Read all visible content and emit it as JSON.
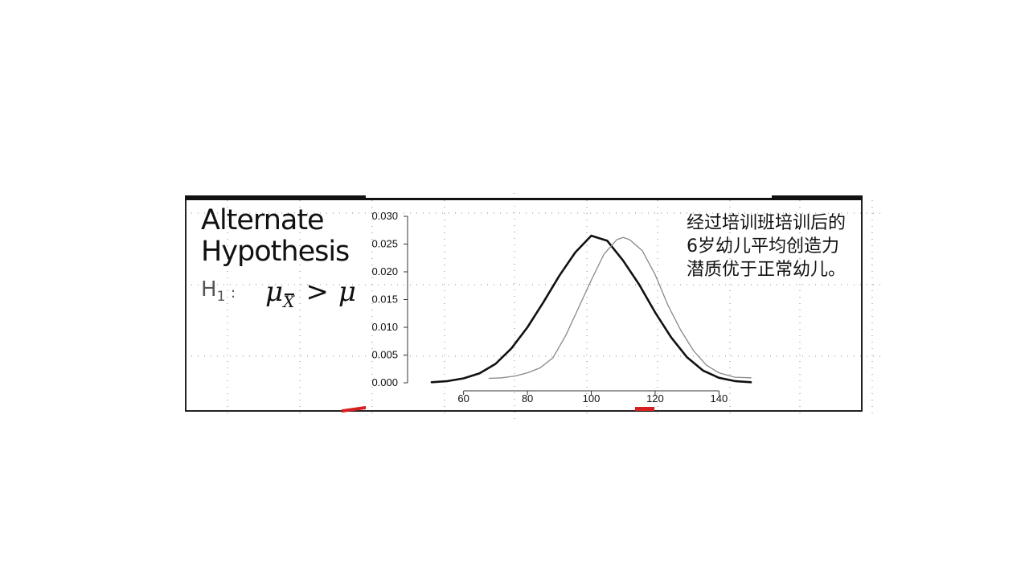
{
  "slide": {
    "hypothesis_title": "Alternate\nHypothesis",
    "h_label": "H",
    "h_sub": "1",
    "h_colon": ":",
    "formula": {
      "mu": "μ",
      "sub": "X",
      "gt": ">",
      "mu2": "μ"
    },
    "note": "经过培训班培训后的6岁幼儿平均创造力潜质优于正常幼儿。"
  },
  "chart_data": {
    "type": "line",
    "title": "",
    "xlabel": "",
    "ylabel": "",
    "xlim": [
      48,
      152
    ],
    "ylim": [
      0,
      0.03
    ],
    "x_ticks": [
      60,
      80,
      100,
      120,
      140
    ],
    "y_ticks": [
      "0.000",
      "0.005",
      "0.010",
      "0.015",
      "0.020",
      "0.025",
      "0.030"
    ],
    "grid": true,
    "series": [
      {
        "color": "#111111",
        "stroke": "thick",
        "x": [
          50,
          55,
          60,
          65,
          70,
          75,
          80,
          85,
          90,
          95,
          100,
          105,
          110,
          115,
          120,
          125,
          130,
          135,
          140,
          145,
          150
        ],
        "y": [
          0.0001,
          0.0003,
          0.0008,
          0.0017,
          0.0034,
          0.0062,
          0.01,
          0.0145,
          0.0193,
          0.0235,
          0.0265,
          0.0256,
          0.022,
          0.0177,
          0.0127,
          0.0082,
          0.0046,
          0.0022,
          0.0009,
          0.0003,
          0.0001
        ]
      },
      {
        "color": "#888888",
        "stroke": "thin",
        "x": [
          68,
          72,
          76,
          80,
          84,
          88,
          92,
          96,
          100,
          104,
          108,
          110,
          112,
          116,
          120,
          124,
          128,
          132,
          136,
          140,
          145,
          150
        ],
        "y": [
          0.0008,
          0.0009,
          0.0012,
          0.0018,
          0.0027,
          0.0045,
          0.0085,
          0.0135,
          0.0185,
          0.0232,
          0.0258,
          0.0262,
          0.0258,
          0.0238,
          0.0195,
          0.014,
          0.0095,
          0.0058,
          0.0032,
          0.0018,
          0.001,
          0.0009
        ]
      }
    ]
  }
}
